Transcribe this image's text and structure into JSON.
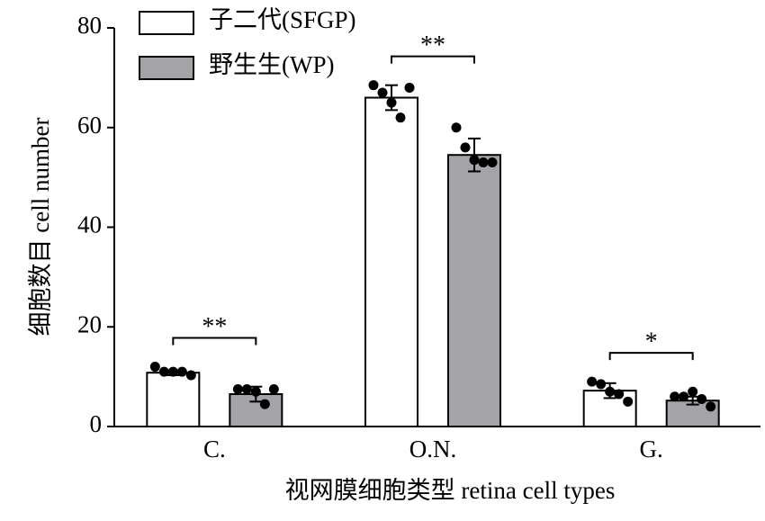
{
  "chart_data": {
    "type": "bar",
    "x_label": "视网膜细胞类型 retina cell types",
    "y_label": "细胞数目 cell number",
    "categories": [
      "C.",
      "O.N.",
      "G."
    ],
    "series": [
      {
        "name": "子二代(SFGP)",
        "color": "#ffffff",
        "values": [
          10.8,
          66,
          7.2
        ],
        "errors": [
          0.5,
          2.5,
          1.5
        ],
        "points": [
          [
            12,
            11,
            11,
            11,
            10.3
          ],
          [
            68.5,
            67,
            65,
            62,
            68
          ],
          [
            9,
            8.5,
            7,
            6.5,
            5
          ]
        ]
      },
      {
        "name": "野生生(WP)",
        "color": "#a3a3a8",
        "values": [
          6.5,
          54.5,
          5.2
        ],
        "errors": [
          1.5,
          3.3,
          0.8
        ],
        "points": [
          [
            7.5,
            7.5,
            7,
            4.5,
            7.5
          ],
          [
            60,
            56,
            53.5,
            53,
            53
          ],
          [
            6,
            6,
            7,
            5.5,
            4
          ]
        ]
      }
    ],
    "significance": [
      "**",
      "**",
      "*"
    ],
    "ylim": [
      0,
      80
    ],
    "yticks": [
      0,
      20,
      40,
      60,
      80
    ]
  }
}
